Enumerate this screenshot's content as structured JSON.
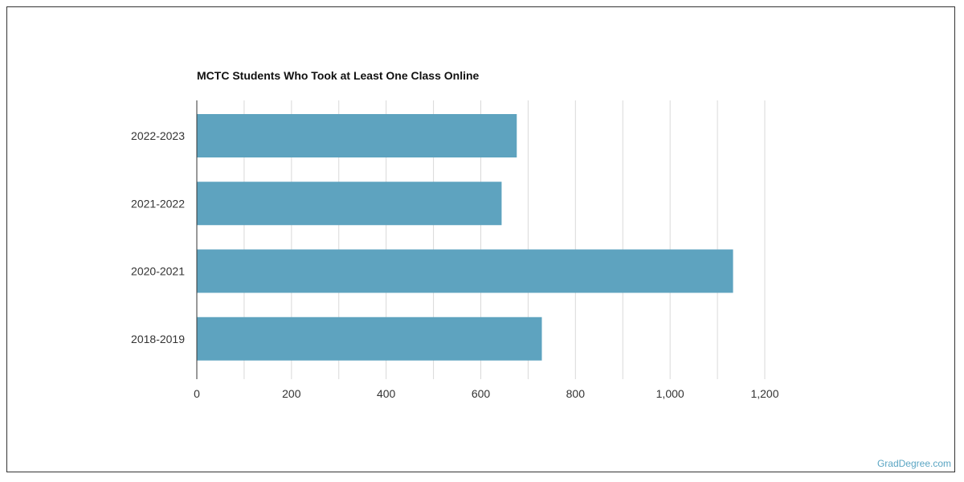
{
  "chart_data": {
    "type": "bar",
    "orientation": "horizontal",
    "title": "MCTC Students Who Took at Least One Class Online",
    "categories": [
      "2022-2023",
      "2021-2022",
      "2020-2021",
      "2018-2019"
    ],
    "values": [
      676,
      644,
      1133,
      729
    ],
    "xlim": [
      0,
      1200
    ],
    "ticks": [
      "0",
      "200",
      "400",
      "600",
      "800",
      "1,000",
      "1,200"
    ],
    "xlabel": "",
    "ylabel": "",
    "grid": true,
    "bar_color": "#5ea3bf"
  },
  "watermark": "GradDegree.com"
}
